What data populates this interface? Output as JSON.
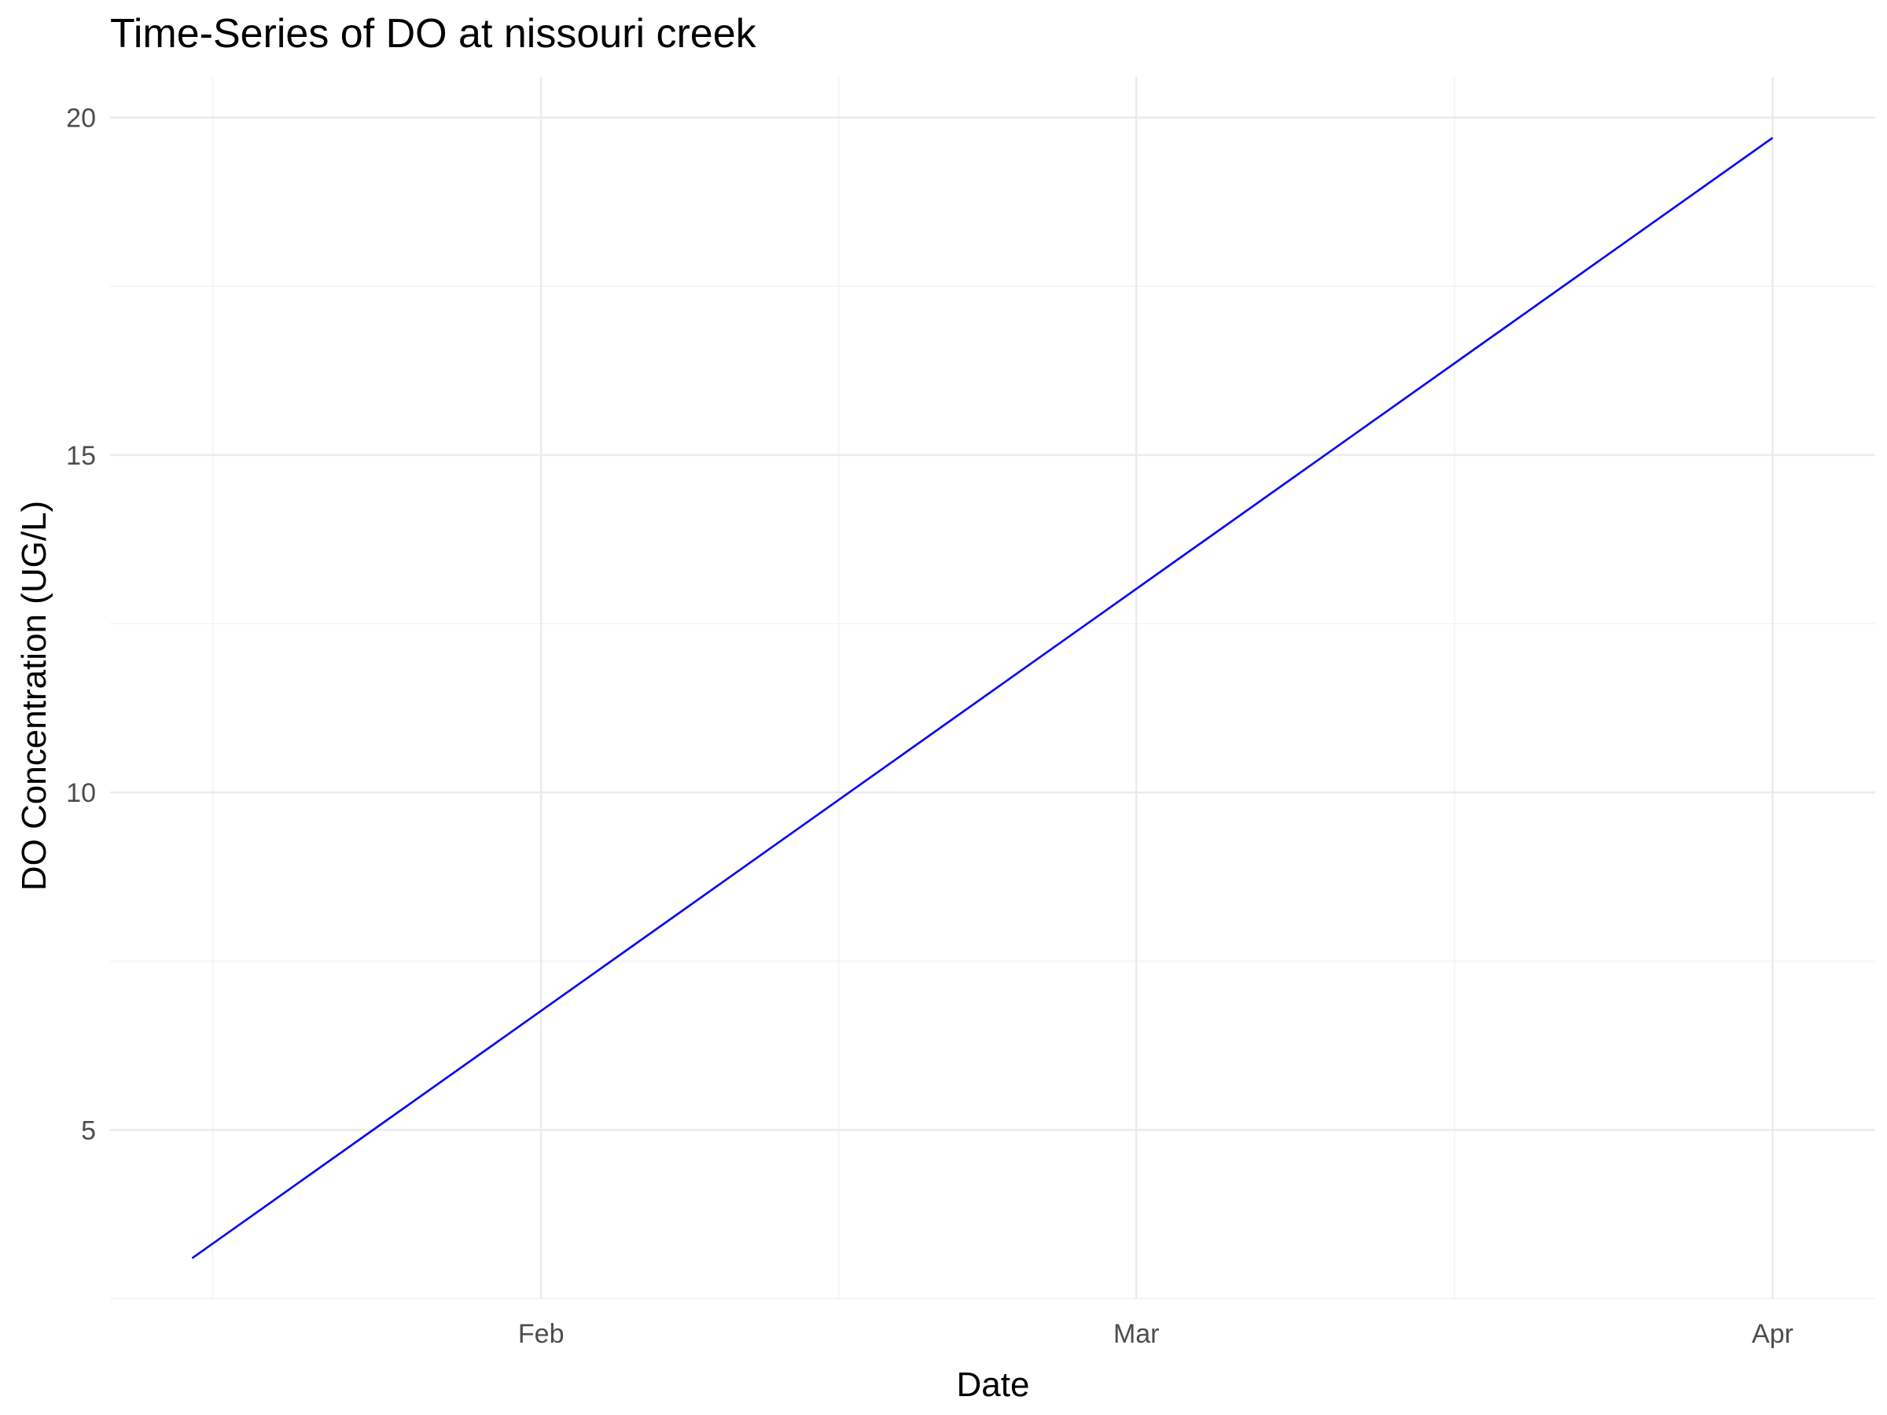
{
  "chart_data": {
    "type": "line",
    "title": "Time-Series of DO at nissouri creek",
    "xlabel": "Date",
    "ylabel": "DO Concentration (UG/L)",
    "x_axis": {
      "kind": "date",
      "range": [
        "2024-01-11",
        "2024-04-06"
      ],
      "ticks": [
        {
          "value": "2024-02-01",
          "label": "Feb"
        },
        {
          "value": "2024-03-01",
          "label": "Mar"
        },
        {
          "value": "2024-04-01",
          "label": "Apr"
        }
      ]
    },
    "y_axis": {
      "range": [
        2.5,
        20.6
      ],
      "ticks": [
        {
          "value": 5,
          "label": "5"
        },
        {
          "value": 10,
          "label": "10"
        },
        {
          "value": 15,
          "label": "15"
        },
        {
          "value": 20,
          "label": "20"
        }
      ]
    },
    "grid": true,
    "legend": "none",
    "series": [
      {
        "color": "#0000ff",
        "points": [
          {
            "x": "2024-01-15",
            "y": 3.1
          },
          {
            "x": "2024-04-01",
            "y": 19.7
          }
        ]
      }
    ]
  }
}
